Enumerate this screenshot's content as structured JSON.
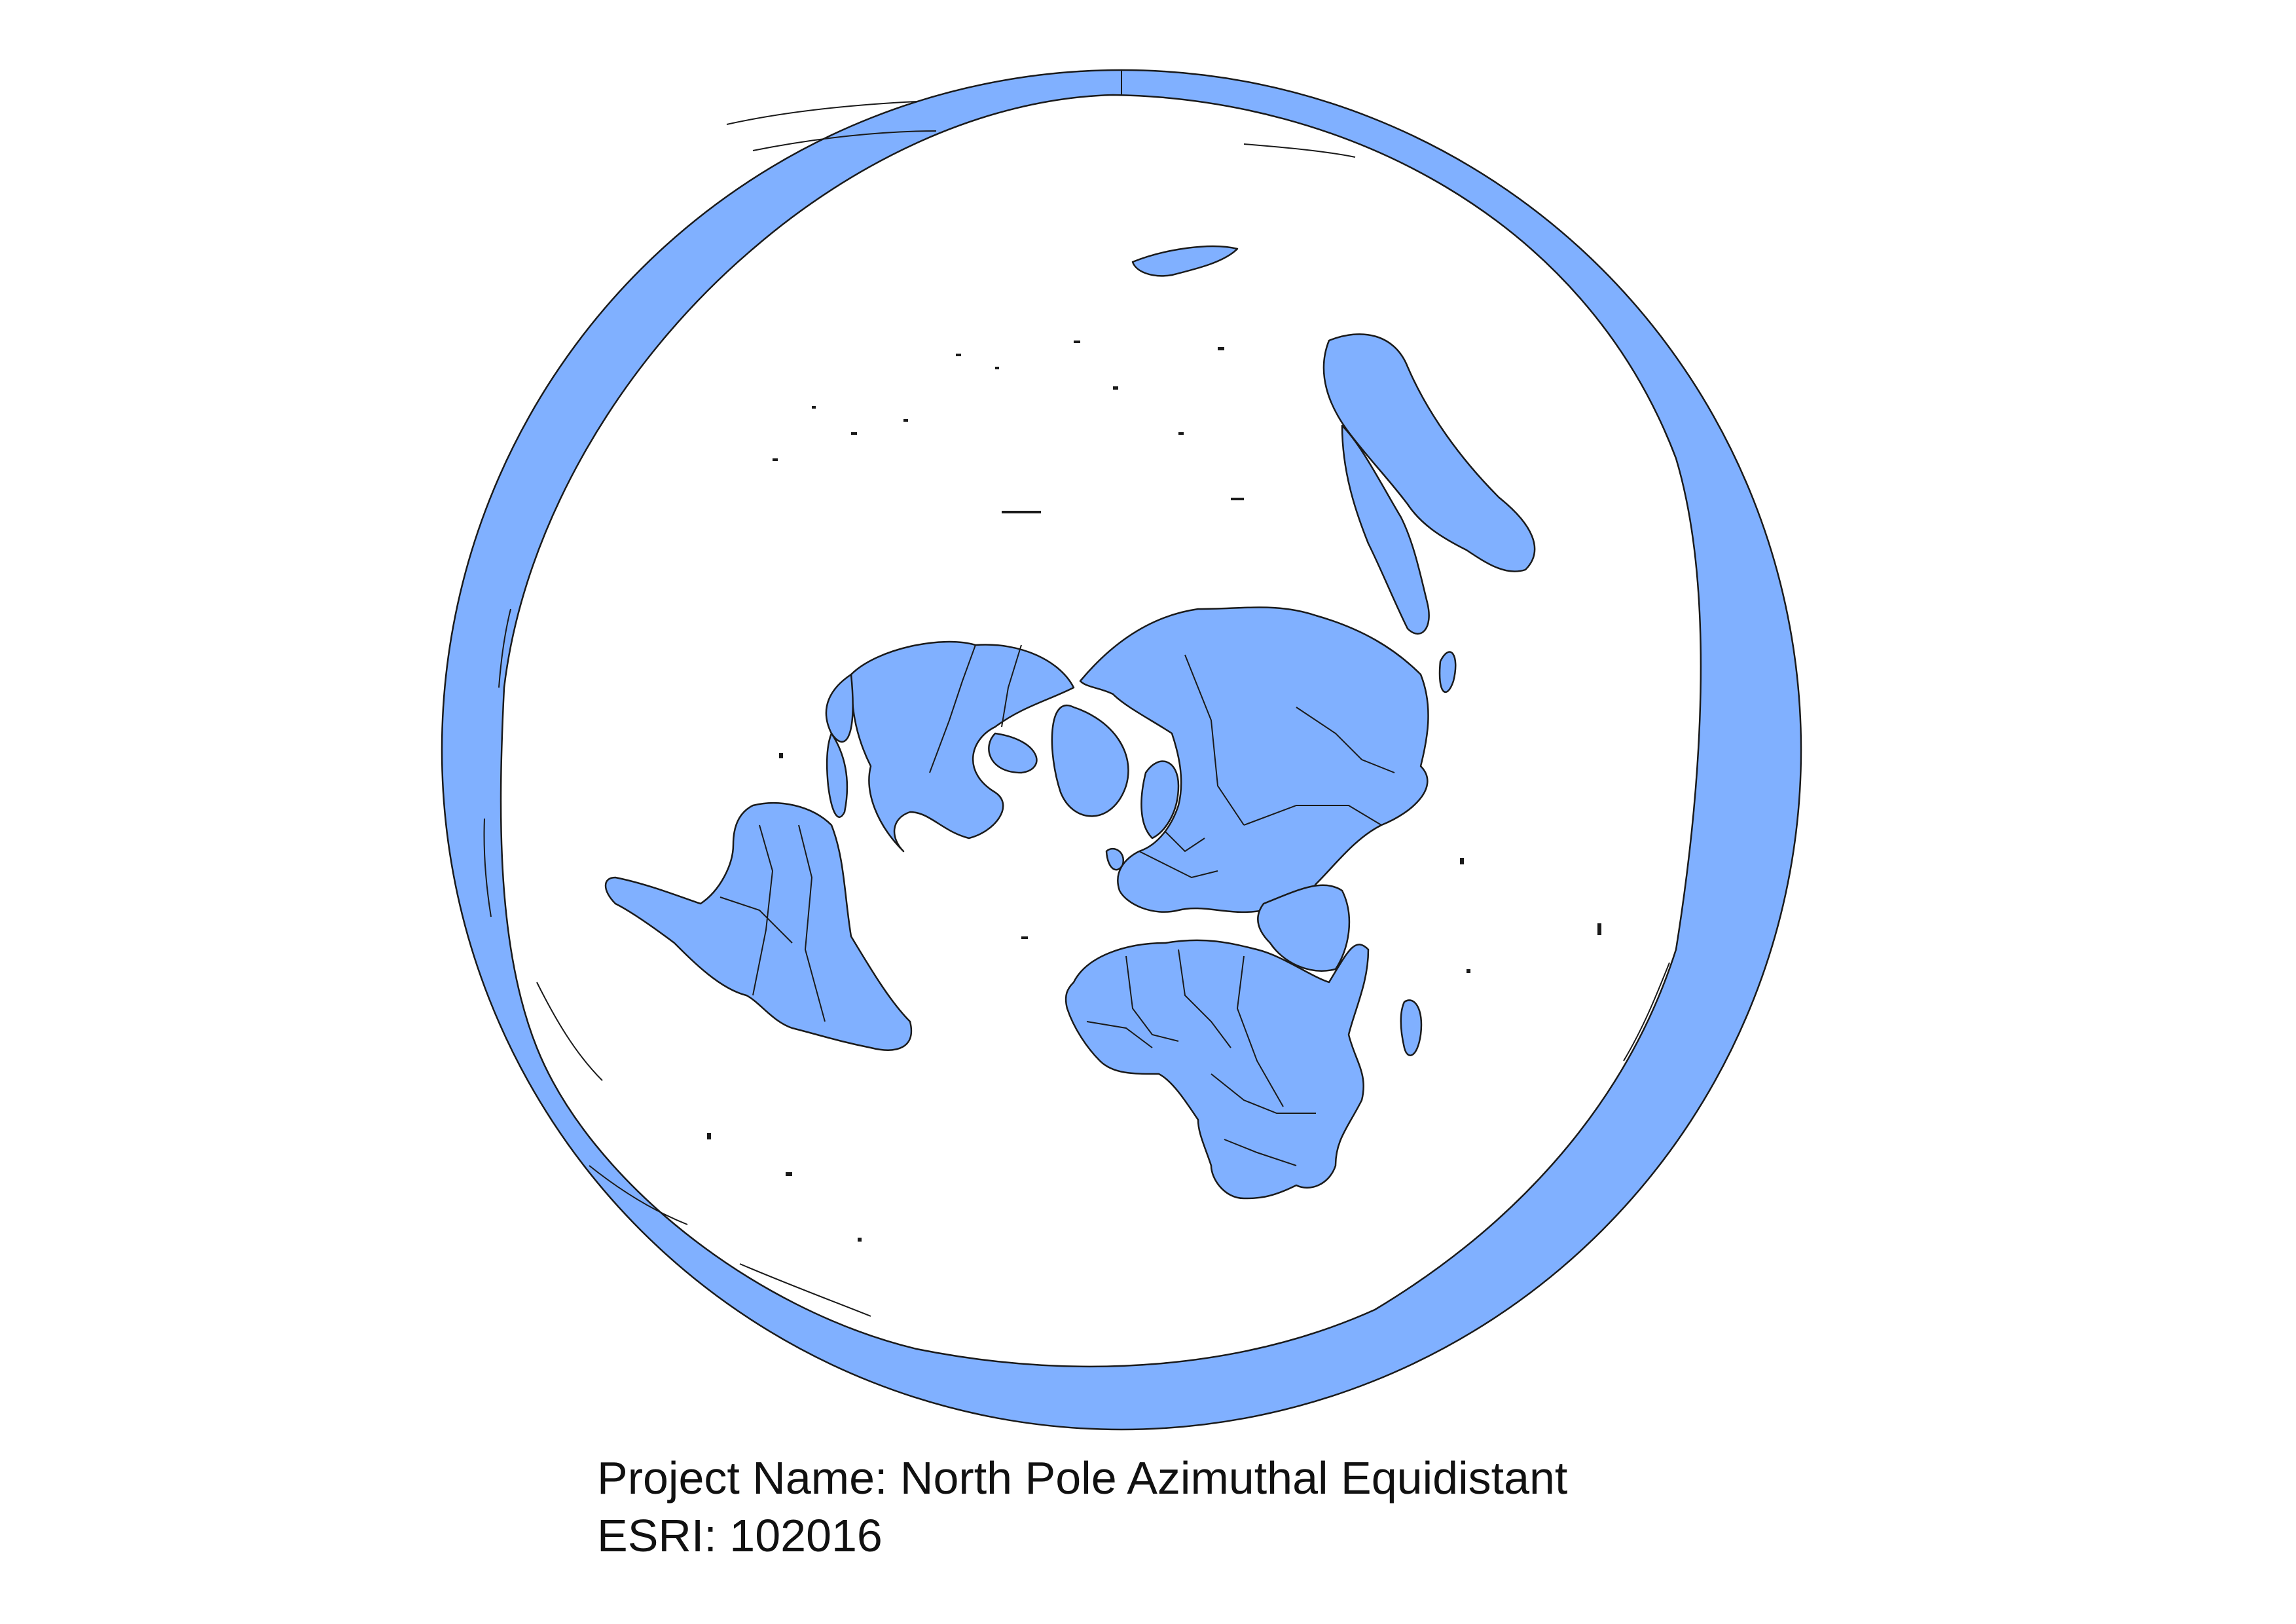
{
  "projection": {
    "name_label": "Project Name: North Pole Azimuthal Equidistant",
    "esri_label": "ESRI: 102016"
  },
  "colors": {
    "land_fill": "#80b0ff",
    "ocean_fill": "#ffffff",
    "outline": "#1a1a1a",
    "background": "#ffffff"
  }
}
